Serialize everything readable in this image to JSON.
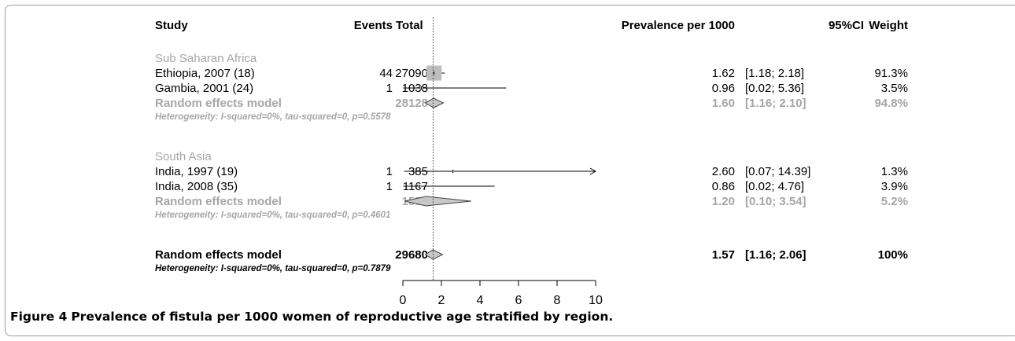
{
  "columns": {
    "study": "Study",
    "events": "Events",
    "total": "Total",
    "prevalence": "Prevalence per 1000",
    "ci": "95%CI",
    "weight": "Weight"
  },
  "chart_data": {
    "type": "forest",
    "xlim": [
      0,
      10
    ],
    "x_ticks": [
      0,
      2,
      4,
      6,
      8,
      10
    ],
    "reference_line": 1.57,
    "groups": [
      {
        "name": "Sub Saharan Africa",
        "studies": [
          {
            "label": "Ethiopia, 2007 (18)",
            "events": "44",
            "total": "27090",
            "est": 1.62,
            "lower": 1.18,
            "upper": 2.18,
            "est_text": "1.62",
            "ci_text": "[1.18; 2.18]",
            "weight_text": "91.3%",
            "weight": 91.3
          },
          {
            "label": "Gambia, 2001 (24)",
            "events": "1",
            "total": "1038",
            "est": 0.96,
            "lower": 0.02,
            "upper": 5.36,
            "est_text": "0.96",
            "ci_text": "[0.02; 5.36]",
            "weight_text": "3.5%",
            "weight": 3.5
          }
        ],
        "summary": {
          "label": "Random effects model",
          "total": "28128",
          "est": 1.6,
          "lower": 1.16,
          "upper": 2.1,
          "est_text": "1.60",
          "ci_text": "[1.16; 2.10]",
          "weight_text": "94.8%"
        },
        "heterogeneity": "Heterogeneity: I-squared=0%, tau-squared=0, p=0.5578"
      },
      {
        "name": "South Asia",
        "studies": [
          {
            "label": "India, 1997 (19)",
            "events": "1",
            "total": "385",
            "est": 2.6,
            "lower": 0.07,
            "upper": 14.39,
            "est_text": "2.60",
            "ci_text": "[0.07; 14.39]",
            "weight_text": "1.3%",
            "weight": 1.3
          },
          {
            "label": "India, 2008 (35)",
            "events": "1",
            "total": "1167",
            "est": 0.86,
            "lower": 0.02,
            "upper": 4.76,
            "est_text": "0.86",
            "ci_text": "[0.02; 4.76]",
            "weight_text": "3.9%",
            "weight": 3.9
          }
        ],
        "summary": {
          "label": "Random effects model",
          "total": "1552",
          "est": 1.2,
          "lower": 0.1,
          "upper": 3.54,
          "est_text": "1.20",
          "ci_text": "[0.10; 3.54]",
          "weight_text": "5.2%"
        },
        "heterogeneity": "Heterogeneity: I-squared=0%, tau-squared=0, p=0.4601"
      }
    ],
    "overall": {
      "label": "Random effects model",
      "total": "29680",
      "est": 1.57,
      "lower": 1.16,
      "upper": 2.06,
      "est_text": "1.57",
      "ci_text": "[1.16; 2.06]",
      "weight_text": "100%",
      "heterogeneity": "Heterogeneity: I-squared=0%, tau-squared=0, p=0.7879"
    }
  },
  "caption": {
    "figure_label": "Figure 4",
    "text": "Prevalence of fistula per 1000 women of reproductive age stratified by region."
  },
  "colors": {
    "text": "#000000",
    "subgroup": "#a6a6a6",
    "box": "#bdbdbd",
    "diamond_fill": "#c8c8c8",
    "frame": "#9a9a9a"
  }
}
